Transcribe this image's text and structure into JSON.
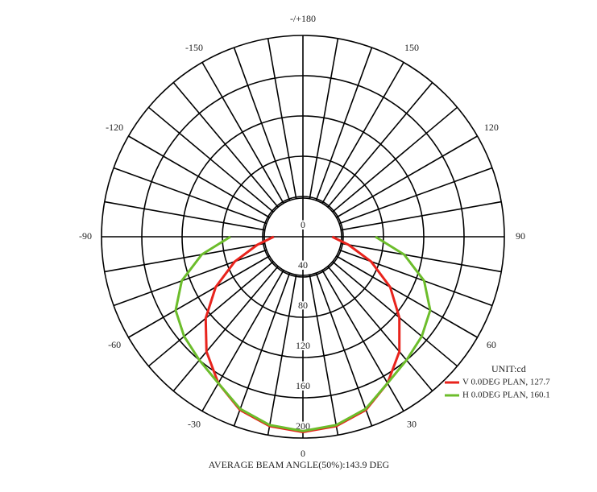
{
  "chart_data": {
    "type": "polar",
    "theta": [
      -90,
      -80,
      -70,
      -60,
      -50,
      -40,
      -30,
      -20,
      -10,
      0,
      10,
      20,
      30,
      40,
      50,
      60,
      70,
      80,
      90
    ],
    "series": [
      {
        "name": "V 0.0DEG PLAN, 127.7",
        "color": "#e8231c",
        "values": [
          29,
          46,
          72,
          100,
          126,
          149,
          168,
          183,
          191,
          194,
          191,
          183,
          168,
          149,
          125,
          100,
          72,
          46,
          29
        ]
      },
      {
        "name": "H 0.0DEG PLAN, 160.1",
        "color": "#6cbd2b",
        "values": [
          72,
          102,
          128,
          146,
          154,
          160,
          168,
          182,
          190,
          193,
          190,
          182,
          168,
          160,
          154,
          146,
          128,
          102,
          72
        ]
      }
    ],
    "rlim": [
      0,
      200
    ],
    "rticks": [
      0,
      40,
      80,
      120,
      160,
      200
    ],
    "thetaticks": [
      0,
      30,
      60,
      90,
      120,
      150,
      {
        "value": 180,
        "label": "-/+180"
      },
      -150,
      -120,
      -90,
      -60,
      -30
    ],
    "legend_title": "UNIT:cd",
    "annotation": "AVERAGE BEAM ANGLE(50%):143.9 DEG"
  }
}
